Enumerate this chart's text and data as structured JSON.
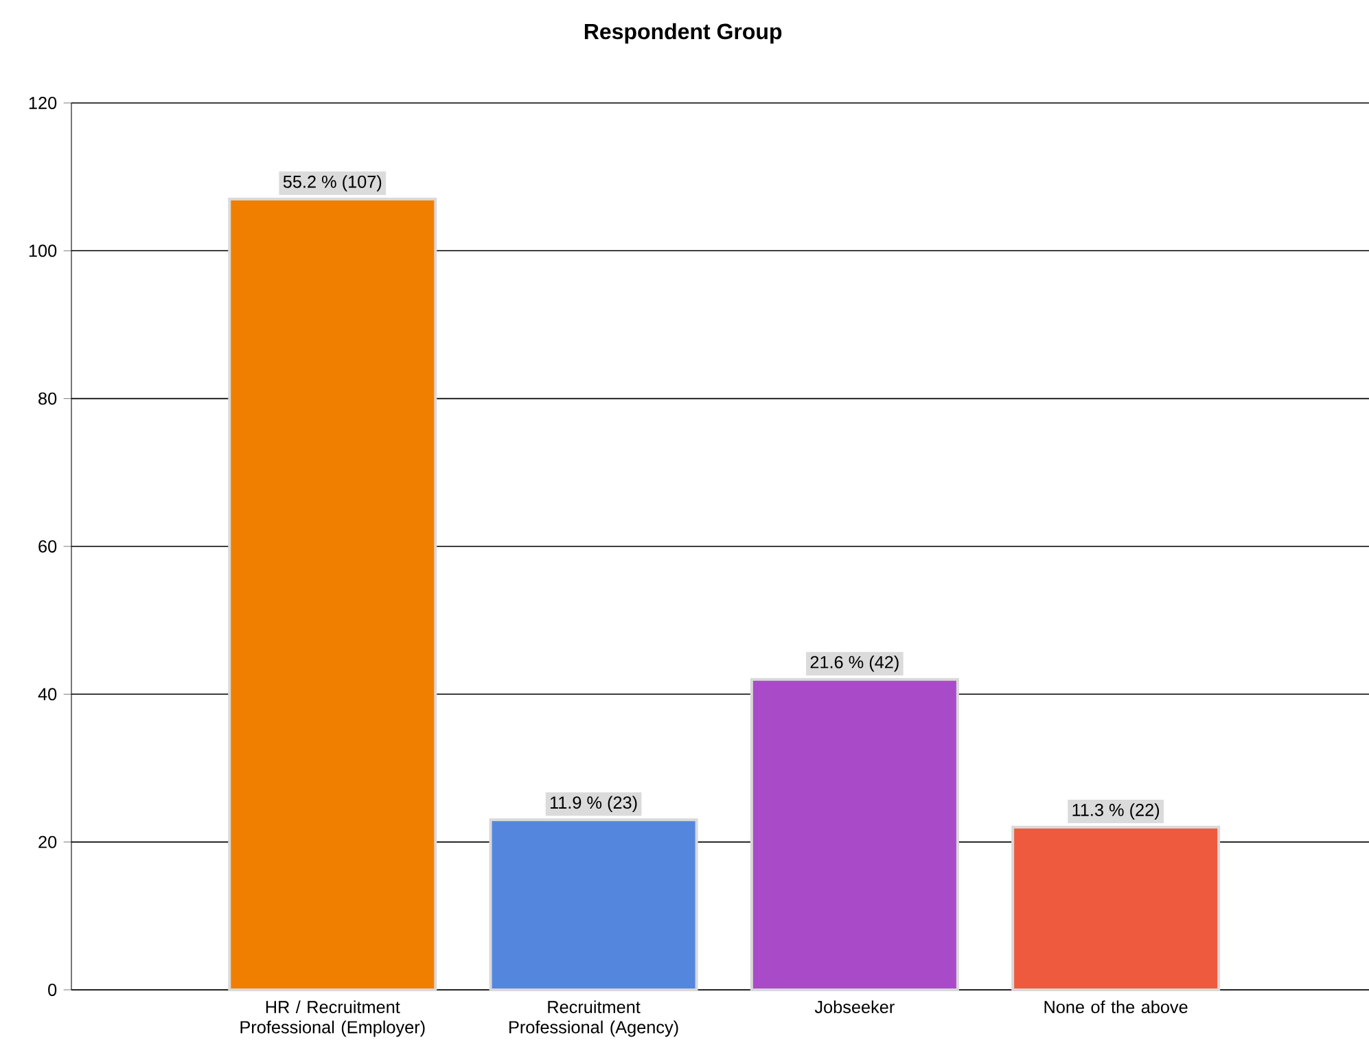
{
  "chart_data": {
    "type": "bar",
    "title": "Respondent Group",
    "categories": [
      "HR / Recruitment Professional (Employer)",
      "Recruitment Professional (Agency)",
      "Jobseeker",
      "None of the above"
    ],
    "values": [
      107,
      23,
      42,
      22
    ],
    "colors": [
      "#f07f00",
      "#5586de",
      "#a94bc8",
      "#ee5a3d"
    ],
    "value_labels": [
      "55.2 % (107)",
      "11.9 % (23)",
      "21.6 % (42)",
      "11.3 % (22)"
    ],
    "ylim": [
      0,
      120
    ],
    "yticks": [
      0,
      20,
      40,
      60,
      80,
      100,
      120
    ],
    "grid": "y"
  }
}
